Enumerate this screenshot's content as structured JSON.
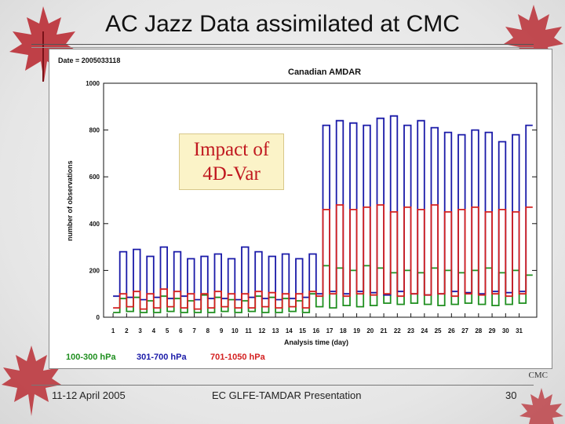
{
  "slide": {
    "title": "AC Jazz Data assimilated at CMC",
    "annotation_line1": "Impact of",
    "annotation_line2": "4D-Var",
    "org": "CMC",
    "footer_left": "11-12 April 2005",
    "footer_center": "EC GLFE-TAMDAR Presentation",
    "page_number": "30"
  },
  "chart_data": {
    "type": "line",
    "title": "Canadian AMDAR",
    "date_label": "Date = 2005033118",
    "xlabel": "Analysis time (day)",
    "ylabel": "number of observations",
    "ylim": [
      0,
      1000
    ],
    "yticks": [
      0,
      200,
      400,
      600,
      800,
      1000
    ],
    "xticks": [
      "1",
      "2",
      "3",
      "4",
      "5",
      "6",
      "7",
      "8",
      "9",
      "10",
      "11",
      "12",
      "13",
      "14",
      "15",
      "16",
      "17",
      "18",
      "19",
      "20",
      "21",
      "22",
      "23",
      "24",
      "25",
      "26",
      "27",
      "28",
      "29",
      "30",
      "31"
    ],
    "xlim": [
      0.3,
      32.3
    ],
    "legend": [
      "100-300 hPa",
      "301-700 hPa",
      "701-1050 hPa"
    ],
    "series": [
      {
        "name": "100-300 hPa",
        "color": "#1f8f1f",
        "x": [
          1,
          1.5,
          2,
          2.5,
          3,
          3.5,
          4,
          4.5,
          5,
          5.5,
          6,
          6.5,
          7,
          7.5,
          8,
          8.5,
          9,
          9.5,
          10,
          10.5,
          11,
          11.5,
          12,
          12.5,
          13,
          13.5,
          14,
          14.5,
          15,
          15.5,
          16,
          16.5,
          17,
          17.5,
          18,
          18.5,
          19,
          19.5,
          20,
          20.5,
          21,
          21.5,
          22,
          22.5,
          23,
          23.5,
          24,
          24.5,
          25,
          25.5,
          26,
          26.5,
          27,
          27.5,
          28,
          28.5,
          29,
          29.5,
          30,
          30.5,
          31,
          31.5
        ],
        "values": [
          20,
          80,
          25,
          85,
          20,
          70,
          20,
          90,
          25,
          80,
          20,
          70,
          20,
          95,
          20,
          85,
          25,
          75,
          20,
          70,
          25,
          90,
          20,
          85,
          20,
          80,
          25,
          70,
          20,
          100,
          45,
          220,
          40,
          210,
          50,
          200,
          45,
          220,
          50,
          210,
          60,
          190,
          55,
          200,
          60,
          190,
          55,
          210,
          50,
          200,
          55,
          190,
          60,
          200,
          55,
          210,
          50,
          190,
          55,
          200,
          60,
          180
        ]
      },
      {
        "name": "301-700 hPa",
        "color": "#1a1aa8",
        "x": [
          1,
          1.5,
          2,
          2.5,
          3,
          3.5,
          4,
          4.5,
          5,
          5.5,
          6,
          6.5,
          7,
          7.5,
          8,
          8.5,
          9,
          9.5,
          10,
          10.5,
          11,
          11.5,
          12,
          12.5,
          13,
          13.5,
          14,
          14.5,
          15,
          15.5,
          16,
          16.5,
          17,
          17.5,
          18,
          18.5,
          19,
          19.5,
          20,
          20.5,
          21,
          21.5,
          22,
          22.5,
          23,
          23.5,
          24,
          24.5,
          25,
          25.5,
          26,
          26.5,
          27,
          27.5,
          28,
          28.5,
          29,
          29.5,
          30,
          30.5,
          31,
          31.5
        ],
        "values": [
          90,
          280,
          85,
          290,
          75,
          260,
          85,
          300,
          80,
          280,
          90,
          250,
          75,
          260,
          80,
          270,
          80,
          250,
          75,
          300,
          85,
          280,
          80,
          260,
          75,
          270,
          80,
          250,
          85,
          270,
          100,
          820,
          110,
          840,
          100,
          830,
          110,
          820,
          105,
          850,
          95,
          860,
          110,
          820,
          100,
          840,
          95,
          810,
          100,
          790,
          110,
          780,
          105,
          800,
          100,
          790,
          110,
          750,
          105,
          780,
          110,
          820
        ]
      },
      {
        "name": "701-1050 hPa",
        "color": "#d42020",
        "x": [
          1,
          1.5,
          2,
          2.5,
          3,
          3.5,
          4,
          4.5,
          5,
          5.5,
          6,
          6.5,
          7,
          7.5,
          8,
          8.5,
          9,
          9.5,
          10,
          10.5,
          11,
          11.5,
          12,
          12.5,
          13,
          13.5,
          14,
          14.5,
          15,
          15.5,
          16,
          16.5,
          17,
          17.5,
          18,
          18.5,
          19,
          19.5,
          20,
          20.5,
          21,
          21.5,
          22,
          22.5,
          23,
          23.5,
          24,
          24.5,
          25,
          25.5,
          26,
          26.5,
          27,
          27.5,
          28,
          28.5,
          29,
          29.5,
          30,
          30.5,
          31,
          31.5
        ],
        "values": [
          40,
          100,
          45,
          110,
          35,
          100,
          40,
          120,
          45,
          110,
          40,
          100,
          35,
          100,
          40,
          110,
          45,
          100,
          40,
          100,
          40,
          110,
          45,
          105,
          40,
          100,
          45,
          100,
          40,
          110,
          90,
          460,
          100,
          480,
          90,
          460,
          100,
          470,
          95,
          480,
          100,
          450,
          90,
          470,
          100,
          460,
          95,
          480,
          100,
          450,
          90,
          460,
          100,
          470,
          95,
          450,
          100,
          460,
          90,
          450,
          100,
          470
        ]
      }
    ]
  }
}
